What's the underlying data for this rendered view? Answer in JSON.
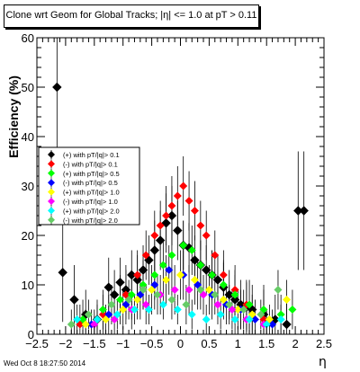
{
  "title": "Clone wrt Geom for Global Tracks; |η| <= 1.0 at pT > 0.11",
  "footer": "Wed Oct  8 18:27:50 2014",
  "chart_data": {
    "type": "scatter",
    "xlabel": "η",
    "ylabel": "Efficiency (%)",
    "xlim": [
      -2.5,
      2.5
    ],
    "ylim": [
      0,
      60
    ],
    "x_ticks": [
      -2.5,
      -2,
      -1.5,
      -1,
      -0.5,
      0,
      0.5,
      1,
      1.5,
      2,
      2.5
    ],
    "x_tick_labels": [
      "−2.5",
      "−2",
      "−1.5",
      "−1",
      "−0.5",
      "0",
      "0.5",
      "1",
      "1.5",
      "2",
      "2.5"
    ],
    "y_ticks": [
      0,
      10,
      20,
      30,
      40,
      50,
      60
    ],
    "y_tick_labels": [
      "0",
      "10",
      "20",
      "30",
      "40",
      "50",
      "60"
    ],
    "legend_position": "middle-left",
    "series": [
      {
        "name": "(+) with pT/|q|> 0.1",
        "color": "#000000",
        "x": [
          -2.15,
          -2.05,
          -1.85,
          -1.65,
          -1.45,
          -1.25,
          -1.15,
          -1.05,
          -0.95,
          -0.85,
          -0.75,
          -0.65,
          -0.55,
          -0.45,
          -0.35,
          -0.25,
          -0.15,
          -0.05,
          0.05,
          0.15,
          0.25,
          0.35,
          0.45,
          0.55,
          0.65,
          0.75,
          0.85,
          0.95,
          1.05,
          1.15,
          1.25,
          1.45,
          1.65,
          1.85,
          2.05,
          2.15
        ],
        "y": [
          50,
          12.5,
          7,
          4,
          3,
          9.5,
          8,
          10.5,
          9,
          12,
          11,
          13,
          15,
          17,
          19,
          22.5,
          24,
          21,
          18,
          17.5,
          15,
          14,
          13,
          12,
          11,
          9.5,
          8,
          7,
          6,
          5.5,
          5,
          4,
          3,
          2,
          25,
          25
        ],
        "err": [
          15,
          10,
          7,
          5,
          4,
          6,
          5,
          5,
          5,
          5,
          5,
          5,
          5,
          6,
          6,
          6,
          6,
          6,
          5,
          5,
          5,
          5,
          5,
          5,
          5,
          5,
          5,
          5,
          5,
          5,
          5,
          5,
          5,
          5,
          12,
          12
        ]
      },
      {
        "name": "(-) with pT/|q|> 0.1",
        "color": "#ff0000",
        "x": [
          -1.75,
          -1.35,
          -0.95,
          -0.75,
          -0.6,
          -0.45,
          -0.35,
          -0.25,
          -0.15,
          -0.05,
          0.05,
          0.15,
          0.25,
          0.35,
          0.45,
          0.6,
          0.75,
          0.95,
          1.15,
          1.45
        ],
        "y": [
          2,
          4,
          8,
          12,
          16,
          20,
          22,
          24,
          26,
          28,
          30,
          27,
          25,
          22,
          20,
          16,
          12,
          9,
          6,
          3
        ],
        "err": [
          4,
          4,
          5,
          5,
          5,
          5,
          5,
          6,
          6,
          6,
          6,
          6,
          6,
          5,
          5,
          5,
          5,
          5,
          5,
          4
        ]
      },
      {
        "name": "(+) with pT/|q|> 0.5",
        "color": "#00ff00",
        "x": [
          -1.7,
          -1.35,
          -1.05,
          -0.85,
          -0.65,
          -0.45,
          -0.3,
          -0.15,
          0.05,
          0.2,
          0.35,
          0.55,
          0.75,
          0.95,
          1.2,
          1.45,
          1.75,
          1.95
        ],
        "y": [
          3,
          5,
          7,
          8,
          10,
          12,
          14,
          16,
          18,
          17,
          14,
          12,
          10,
          8,
          6,
          5,
          4,
          5
        ],
        "err": [
          4,
          4,
          5,
          5,
          5,
          5,
          5,
          5,
          5,
          5,
          5,
          5,
          5,
          5,
          5,
          5,
          4,
          4
        ]
      },
      {
        "name": "(-) with pT/|q|> 0.5",
        "color": "#0000ff",
        "x": [
          -1.55,
          -1.25,
          -0.95,
          -0.7,
          -0.45,
          -0.2,
          0.05,
          0.3,
          0.55,
          0.8,
          1.05,
          1.3,
          1.6
        ],
        "y": [
          2,
          4,
          6,
          8,
          10,
          13,
          12,
          10,
          8,
          6,
          5,
          3,
          2
        ],
        "err": [
          3,
          4,
          4,
          5,
          5,
          5,
          5,
          5,
          5,
          4,
          4,
          4,
          3
        ]
      },
      {
        "name": "(+) with pT/|q|> 1.0",
        "color": "#ffff00",
        "x": [
          -1.65,
          -1.3,
          -1.0,
          -0.75,
          -0.5,
          -0.25,
          0.0,
          0.25,
          0.5,
          0.75,
          1.0,
          1.25,
          1.55,
          1.85
        ],
        "y": [
          2,
          3,
          5,
          7,
          9,
          11,
          12,
          11,
          9,
          7,
          5,
          4,
          3,
          7
        ],
        "err": [
          3,
          3,
          4,
          4,
          5,
          5,
          5,
          5,
          5,
          4,
          4,
          4,
          3,
          4
        ]
      },
      {
        "name": "(-) with pT/|q|> 1.0",
        "color": "#ff00ff",
        "x": [
          -1.5,
          -1.15,
          -0.85,
          -0.6,
          -0.35,
          -0.1,
          0.15,
          0.4,
          0.65,
          0.9,
          1.15,
          1.45
        ],
        "y": [
          2,
          3,
          5,
          6,
          8,
          9,
          9,
          8,
          6,
          5,
          3,
          2
        ],
        "err": [
          3,
          3,
          4,
          4,
          4,
          5,
          5,
          4,
          4,
          4,
          3,
          3
        ]
      },
      {
        "name": "(+) with pT/|q|> 2.0",
        "color": "#00ffff",
        "x": [
          -1.8,
          -1.45,
          -1.1,
          -0.8,
          -0.55,
          -0.3,
          -0.05,
          0.2,
          0.45,
          0.7,
          0.95,
          1.2,
          1.5,
          1.75
        ],
        "y": [
          3,
          3,
          4,
          5,
          5,
          6,
          5,
          4,
          3,
          4,
          3,
          3,
          2,
          3
        ],
        "err": [
          3,
          3,
          3,
          3,
          3,
          3,
          3,
          3,
          3,
          3,
          3,
          3,
          3,
          3
        ]
      },
      {
        "name": "(-) with pT/|q|> 2.0",
        "color": "#66cc66",
        "x": [
          -1.9,
          -1.6,
          -1.2,
          -0.9,
          -0.65,
          -0.4,
          -0.15,
          0.1,
          0.35,
          0.6,
          0.85,
          1.1,
          1.4,
          1.7
        ],
        "y": [
          2,
          4,
          6,
          7,
          9,
          8,
          7,
          6,
          9,
          8,
          6,
          5,
          4,
          9
        ],
        "err": [
          3,
          3,
          4,
          4,
          4,
          4,
          4,
          4,
          4,
          4,
          4,
          4,
          3,
          4
        ]
      }
    ]
  }
}
